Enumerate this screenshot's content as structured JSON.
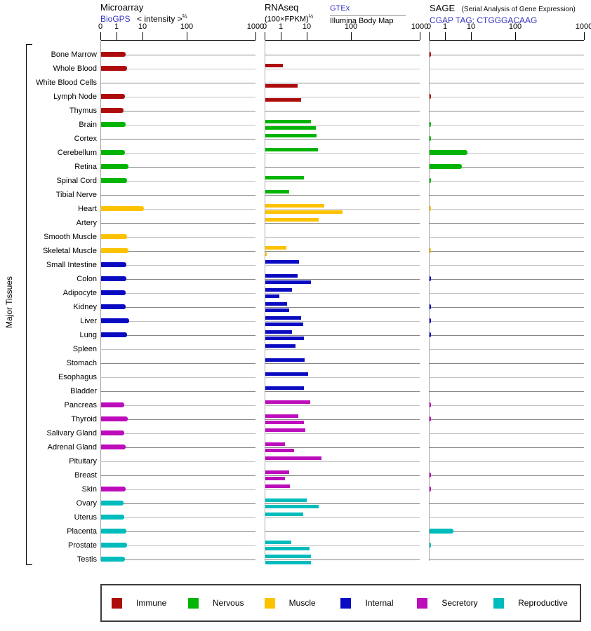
{
  "side_label": "Major Tissues",
  "link_color": "#3535c2",
  "panels": {
    "microarray": {
      "title": "Microarray",
      "source": "BioGPS",
      "scale_label": "< intensity >",
      "scale_exp": "⅔",
      "ticks": [
        "0",
        "1",
        "10",
        "100",
        "1000"
      ]
    },
    "rnaseq": {
      "title": "RNAseq",
      "scale_label": "(100×FPKM)",
      "scale_exp": "½",
      "source1": "GTEx",
      "source2": "Illumina Body Map",
      "ticks": [
        "0",
        "1",
        "10",
        "100",
        "1000"
      ]
    },
    "sage": {
      "title": "SAGE",
      "subtitle": "(Serial Analysis of Gene Expression)",
      "source": "CGAP TAG: CTGGGACAAG",
      "ticks": [
        "0",
        "1",
        "10",
        "100",
        "1000"
      ]
    }
  },
  "legend": [
    {
      "label": "Immune",
      "color": "#ae0c0c"
    },
    {
      "label": "Nervous",
      "color": "#04b404"
    },
    {
      "label": "Muscle",
      "color": "#fcc200"
    },
    {
      "label": "Internal",
      "color": "#0a0ac2"
    },
    {
      "label": "Secretory",
      "color": "#bc0cbc"
    },
    {
      "label": "Reproductive",
      "color": "#00bcbc"
    }
  ],
  "chart_data": {
    "type": "bar",
    "orientation": "horizontal",
    "x_scale": "power-log, ticks at 0,1,10,100,1000",
    "x_ticks": [
      0,
      1,
      10,
      100,
      1000
    ],
    "series_names": [
      "Microarray (BioGPS)",
      "RNAseq GTEx",
      "RNAseq Illumina Body Map",
      "SAGE"
    ],
    "rows": [
      {
        "tissue": "Bone Marrow",
        "group": "Immune",
        "microarray": 2.1,
        "rnaseq_gtex": null,
        "rnaseq_illumina": null,
        "sage": 0.1
      },
      {
        "tissue": "Whole Blood",
        "group": "Immune",
        "microarray": 2.4,
        "rnaseq_gtex": 1.1,
        "rnaseq_illumina": null,
        "sage": null
      },
      {
        "tissue": "White Blood Cells",
        "group": "Immune",
        "microarray": null,
        "rnaseq_gtex": null,
        "rnaseq_illumina": 4.2,
        "sage": null
      },
      {
        "tissue": "Lymph Node",
        "group": "Immune",
        "microarray": 2.0,
        "rnaseq_gtex": null,
        "rnaseq_illumina": 5.7,
        "sage": 0.1
      },
      {
        "tissue": "Thymus",
        "group": "Immune",
        "microarray": 1.8,
        "rnaseq_gtex": null,
        "rnaseq_illumina": null,
        "sage": null
      },
      {
        "tissue": "Brain",
        "group": "Nervous",
        "microarray": 2.1,
        "rnaseq_gtex": 12,
        "rnaseq_illumina": 15.5,
        "sage": 0.07
      },
      {
        "tissue": "Cortex",
        "group": "Nervous",
        "microarray": null,
        "rnaseq_gtex": 16,
        "rnaseq_illumina": null,
        "sage": 0.07
      },
      {
        "tissue": "Cerebellum",
        "group": "Nervous",
        "microarray": 2.0,
        "rnaseq_gtex": 17,
        "rnaseq_illumina": null,
        "sage": 6.8
      },
      {
        "tissue": "Retina",
        "group": "Nervous",
        "microarray": 2.7,
        "rnaseq_gtex": null,
        "rnaseq_illumina": null,
        "sage": 4.2
      },
      {
        "tissue": "Spinal Cord",
        "group": "Nervous",
        "microarray": 2.4,
        "rnaseq_gtex": 7.3,
        "rnaseq_illumina": null,
        "sage": 0.07
      },
      {
        "tissue": "Tibial Nerve",
        "group": "Nervous",
        "microarray": null,
        "rnaseq_gtex": 2.0,
        "rnaseq_illumina": null,
        "sage": null
      },
      {
        "tissue": "Heart",
        "group": "Muscle",
        "microarray": 10.2,
        "rnaseq_gtex": 24,
        "rnaseq_illumina": 62,
        "sage": 0.07
      },
      {
        "tissue": "Artery",
        "group": "Muscle",
        "microarray": null,
        "rnaseq_gtex": 18,
        "rnaseq_illumina": null,
        "sage": null
      },
      {
        "tissue": "Smooth Muscle",
        "group": "Muscle",
        "microarray": 2.4,
        "rnaseq_gtex": null,
        "rnaseq_illumina": null,
        "sage": null
      },
      {
        "tissue": "Skeletal Muscle",
        "group": "Muscle",
        "microarray": 2.7,
        "rnaseq_gtex": 1.55,
        "rnaseq_illumina": 0.07,
        "sage": 0.07
      },
      {
        "tissue": "Small Intestine",
        "group": "Internal",
        "microarray": 2.2,
        "rnaseq_gtex": 4.7,
        "rnaseq_illumina": null,
        "sage": null
      },
      {
        "tissue": "Colon",
        "group": "Internal",
        "microarray": 2.2,
        "rnaseq_gtex": 4.2,
        "rnaseq_illumina": 12,
        "sage": 0.1
      },
      {
        "tissue": "Adipocyte",
        "group": "Internal",
        "microarray": 2.1,
        "rnaseq_gtex": 2.5,
        "rnaseq_illumina": 0.85,
        "sage": null
      },
      {
        "tissue": "Kidney",
        "group": "Internal",
        "microarray": 2.1,
        "rnaseq_gtex": 1.65,
        "rnaseq_illumina": 2.0,
        "sage": 0.1
      },
      {
        "tissue": "Liver",
        "group": "Internal",
        "microarray": 2.9,
        "rnaseq_gtex": 5.7,
        "rnaseq_illumina": 6.9,
        "sage": 0.1
      },
      {
        "tissue": "Lung",
        "group": "Internal",
        "microarray": 2.4,
        "rnaseq_gtex": 2.5,
        "rnaseq_illumina": 7.3,
        "sage": 0.1
      },
      {
        "tissue": "Spleen",
        "group": "Internal",
        "microarray": null,
        "rnaseq_gtex": 3.5,
        "rnaseq_illumina": null,
        "sage": null
      },
      {
        "tissue": "Stomach",
        "group": "Internal",
        "microarray": null,
        "rnaseq_gtex": 7.8,
        "rnaseq_illumina": null,
        "sage": null
      },
      {
        "tissue": "Esophagus",
        "group": "Internal",
        "microarray": null,
        "rnaseq_gtex": 10.4,
        "rnaseq_illumina": null,
        "sage": null
      },
      {
        "tissue": "Bladder",
        "group": "Internal",
        "microarray": null,
        "rnaseq_gtex": 7.3,
        "rnaseq_illumina": null,
        "sage": null
      },
      {
        "tissue": "Pancreas",
        "group": "Secretory",
        "microarray": 1.9,
        "rnaseq_gtex": 11.6,
        "rnaseq_illumina": null,
        "sage": 0.07
      },
      {
        "tissue": "Thyroid",
        "group": "Secretory",
        "microarray": 2.5,
        "rnaseq_gtex": 4.5,
        "rnaseq_illumina": 7.3,
        "sage": 0.07
      },
      {
        "tissue": "Salivary Gland",
        "group": "Secretory",
        "microarray": 1.9,
        "rnaseq_gtex": 8.3,
        "rnaseq_illumina": null,
        "sage": null
      },
      {
        "tissue": "Adrenal Gland",
        "group": "Secretory",
        "microarray": 2.1,
        "rnaseq_gtex": 1.35,
        "rnaseq_illumina": 3.1,
        "sage": null
      },
      {
        "tissue": "Pituitary",
        "group": "Secretory",
        "microarray": null,
        "rnaseq_gtex": 21,
        "rnaseq_illumina": null,
        "sage": null
      },
      {
        "tissue": "Breast",
        "group": "Secretory",
        "microarray": null,
        "rnaseq_gtex": 2.0,
        "rnaseq_illumina": 1.35,
        "sage": 0.07
      },
      {
        "tissue": "Skin",
        "group": "Secretory",
        "microarray": 2.1,
        "rnaseq_gtex": 2.1,
        "rnaseq_illumina": null,
        "sage": 0.07
      },
      {
        "tissue": "Ovary",
        "group": "Reproductive",
        "microarray": 1.8,
        "rnaseq_gtex": 9.4,
        "rnaseq_illumina": 18,
        "sage": null
      },
      {
        "tissue": "Uterus",
        "group": "Reproductive",
        "microarray": 1.9,
        "rnaseq_gtex": 6.9,
        "rnaseq_illumina": null,
        "sage": null
      },
      {
        "tissue": "Placenta",
        "group": "Reproductive",
        "microarray": 2.2,
        "rnaseq_gtex": null,
        "rnaseq_illumina": null,
        "sage": 2.0
      },
      {
        "tissue": "Prostate",
        "group": "Reproductive",
        "microarray": 2.4,
        "rnaseq_gtex": 2.4,
        "rnaseq_illumina": 11.2,
        "sage": 0.07
      },
      {
        "tissue": "Testis",
        "group": "Reproductive",
        "microarray": 2.0,
        "rnaseq_gtex": 12,
        "rnaseq_illumina": 12,
        "sage": null
      }
    ]
  }
}
